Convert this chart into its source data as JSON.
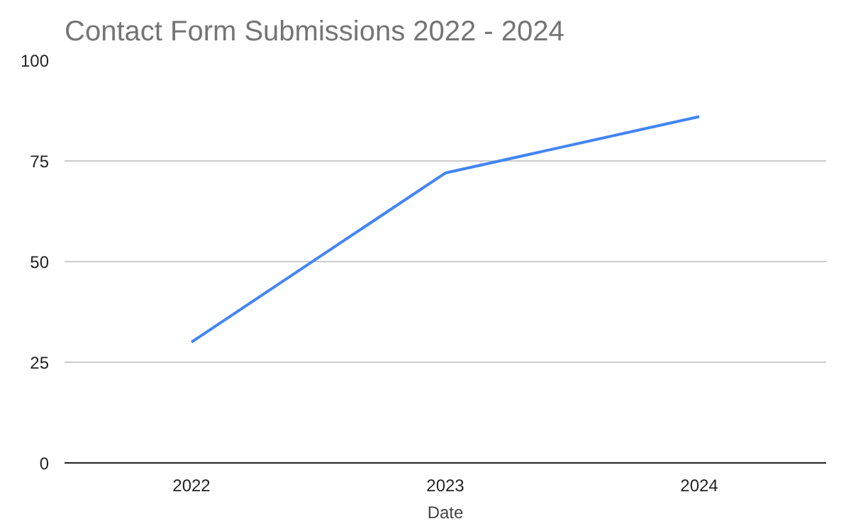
{
  "chart_data": {
    "type": "line",
    "title": "Contact Form Submissions 2022 - 2024",
    "xlabel": "Date",
    "categories": [
      "2022",
      "2023",
      "2024"
    ],
    "series": [
      {
        "color": "#4285f4",
        "values": [
          30,
          72,
          86
        ]
      }
    ],
    "ylim": [
      0,
      100
    ],
    "yticks": [
      0,
      25,
      50,
      75,
      100
    ],
    "grid": "y",
    "marker": "none",
    "line_style": "solid"
  }
}
